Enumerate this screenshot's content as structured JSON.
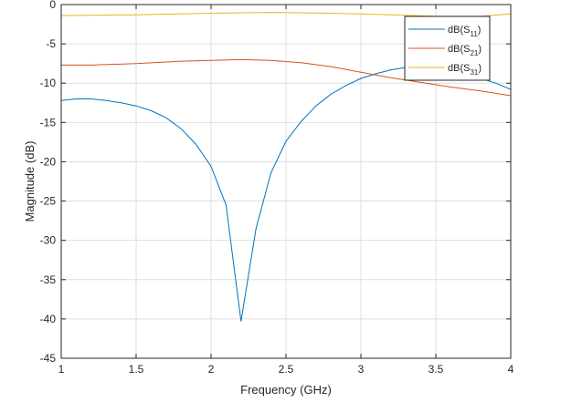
{
  "chart_data": {
    "type": "line",
    "title": "",
    "xlabel": "Frequency (GHz)",
    "ylabel": "Magnitude (dB)",
    "xlim": [
      1,
      4
    ],
    "ylim": [
      -45,
      0
    ],
    "xticks": [
      1,
      1.5,
      2,
      2.5,
      3,
      3.5,
      4
    ],
    "xtick_labels": [
      "1",
      "1.5",
      "2",
      "2.5",
      "3",
      "3.5",
      "4"
    ],
    "yticks": [
      0,
      -5,
      -10,
      -15,
      -20,
      -25,
      -30,
      -35,
      -40,
      -45
    ],
    "ytick_labels": [
      "0",
      "-5",
      "-10",
      "-15",
      "-20",
      "-25",
      "-30",
      "-35",
      "-40",
      "-45"
    ],
    "grid": true,
    "legend_placement": "top-right",
    "series": [
      {
        "name": "dB(S11)",
        "base": "dB(S",
        "sub": "11",
        "color": "#0072BD",
        "x": [
          1.0,
          1.1,
          1.2,
          1.3,
          1.4,
          1.5,
          1.6,
          1.7,
          1.8,
          1.9,
          2.0,
          2.1,
          2.2,
          2.3,
          2.4,
          2.5,
          2.6,
          2.7,
          2.8,
          2.9,
          3.0,
          3.1,
          3.2,
          3.3,
          3.4,
          3.5,
          3.6,
          3.7,
          3.8,
          3.9,
          4.0
        ],
        "y": [
          -12.2,
          -12.0,
          -12.0,
          -12.2,
          -12.5,
          -12.9,
          -13.5,
          -14.4,
          -15.8,
          -17.8,
          -20.6,
          -25.5,
          -40.3,
          -28.5,
          -21.4,
          -17.4,
          -14.9,
          -12.9,
          -11.4,
          -10.3,
          -9.4,
          -8.8,
          -8.3,
          -8.0,
          -7.9,
          -8.0,
          -8.3,
          -8.8,
          -9.4,
          -10.0,
          -10.8
        ]
      },
      {
        "name": "dB(S21)",
        "base": "dB(S",
        "sub": "21",
        "color": "#D95319",
        "x": [
          1.0,
          1.2,
          1.5,
          1.8,
          2.0,
          2.2,
          2.4,
          2.6,
          2.8,
          3.0,
          3.2,
          3.4,
          3.6,
          3.8,
          4.0
        ],
        "y": [
          -7.7,
          -7.7,
          -7.5,
          -7.2,
          -7.1,
          -7.0,
          -7.1,
          -7.4,
          -7.9,
          -8.6,
          -9.3,
          -9.9,
          -10.5,
          -11.0,
          -11.6
        ]
      },
      {
        "name": "dB(S31)",
        "base": "dB(S",
        "sub": "31",
        "color": "#EDB120",
        "x": [
          1.0,
          1.5,
          2.0,
          2.4,
          2.8,
          3.2,
          3.5,
          3.8,
          4.0
        ],
        "y": [
          -1.4,
          -1.3,
          -1.1,
          -1.0,
          -1.1,
          -1.3,
          -1.5,
          -1.5,
          -1.2
        ]
      }
    ]
  }
}
